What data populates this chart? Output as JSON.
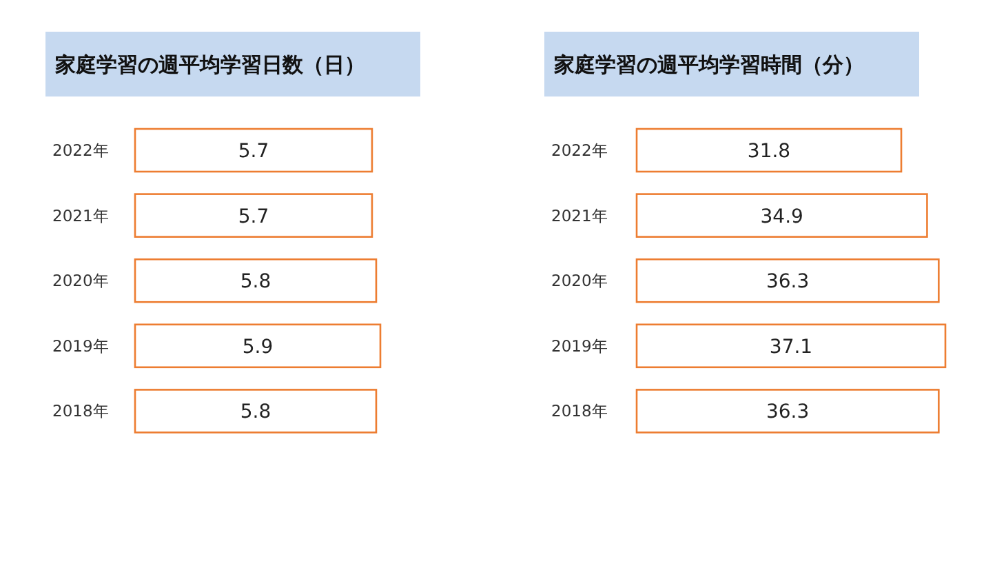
{
  "chart_data": [
    {
      "type": "bar",
      "orientation": "horizontal",
      "title": "家庭学習の週平均学習日数（日）",
      "categories": [
        "2022年",
        "2021年",
        "2020年",
        "2019年",
        "2018年"
      ],
      "values": [
        5.7,
        5.7,
        5.8,
        5.9,
        5.8
      ],
      "color": "#ed7d31",
      "data_labels": true
    },
    {
      "type": "bar",
      "orientation": "horizontal",
      "title": "家庭学習の週平均学習時間（分）",
      "categories": [
        "2022年",
        "2021年",
        "2020年",
        "2019年",
        "2018年"
      ],
      "values": [
        31.8,
        34.9,
        36.3,
        37.1,
        36.3
      ],
      "color": "#ed7d31",
      "data_labels": true
    }
  ]
}
